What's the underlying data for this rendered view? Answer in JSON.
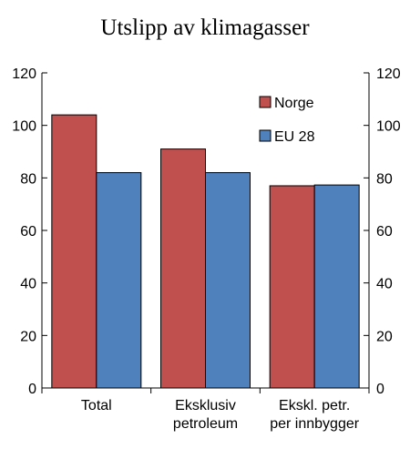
{
  "chart_data": {
    "type": "bar",
    "title": "Utslipp av klimagasser",
    "categories": [
      [
        "Total"
      ],
      [
        "Eksklusiv",
        "petroleum"
      ],
      [
        "Ekskl. petr.",
        "per innbygger"
      ]
    ],
    "series": [
      {
        "name": "Norge",
        "color": "#c0504d",
        "values": [
          104,
          91,
          77
        ]
      },
      {
        "name": "EU 28",
        "color": "#4f81bd",
        "values": [
          82,
          82,
          77.3
        ]
      }
    ],
    "ylim": [
      0,
      120
    ],
    "yticks": [
      0,
      20,
      40,
      60,
      80,
      100,
      120
    ],
    "dual_y_axis": true,
    "grid": false,
    "legend_position": "top-right"
  }
}
